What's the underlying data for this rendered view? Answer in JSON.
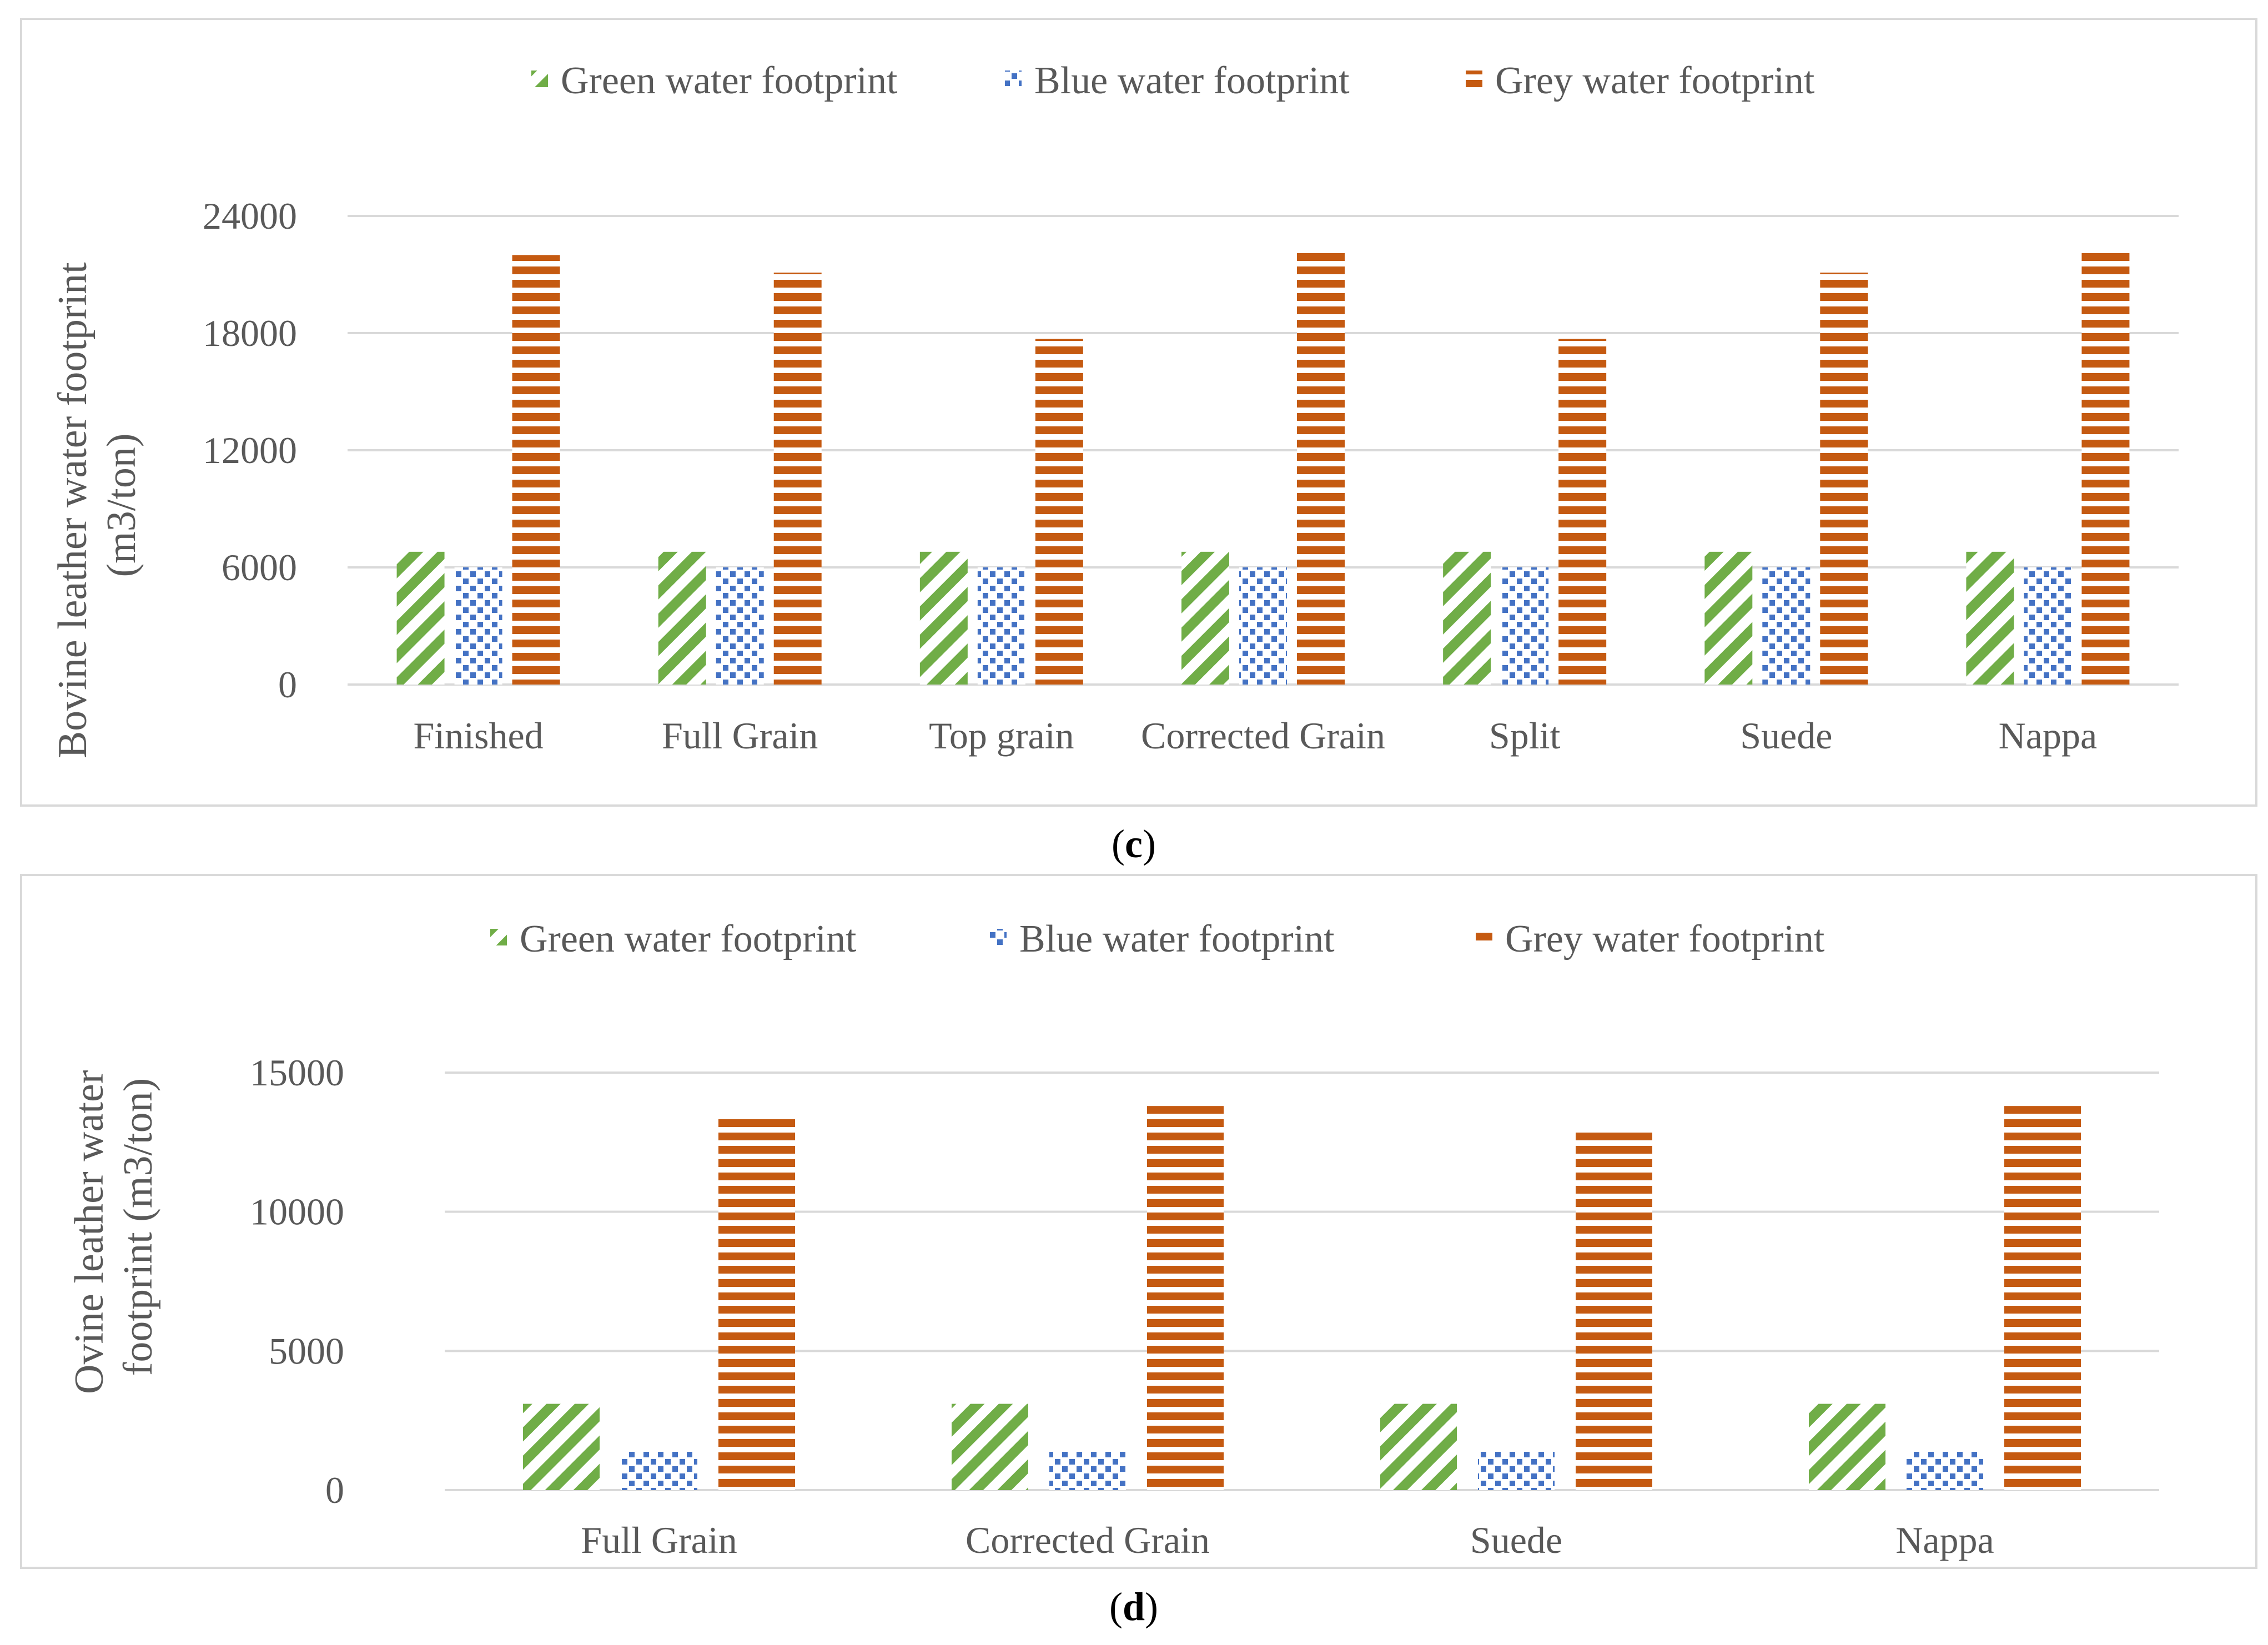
{
  "colors": {
    "green": "#70ad47",
    "blue": "#4472c4",
    "grey": "#c55a11"
  },
  "chart_data": [
    {
      "type": "bar",
      "panel_label": {
        "open": "(",
        "letter": "c",
        "close": ")"
      },
      "categories": [
        "Finished",
        "Full Grain",
        "Top grain",
        "Corrected Grain",
        "Split",
        "Suede",
        "Nappa"
      ],
      "series": [
        {
          "name": "Green water footprint",
          "pattern": "diagonal",
          "values": [
            6800,
            6800,
            6800,
            6800,
            6800,
            6800,
            6800
          ]
        },
        {
          "name": "Blue water footprint",
          "pattern": "dots",
          "values": [
            6000,
            6000,
            6000,
            6000,
            6000,
            6000,
            6000
          ]
        },
        {
          "name": "Grey water footprint",
          "pattern": "horizontal",
          "values": [
            22000,
            21100,
            17700,
            22100,
            17700,
            21100,
            22100
          ]
        }
      ],
      "ylabel_lines": [
        "Bovine leather water footprint",
        "(m3/ton)"
      ],
      "ylim": [
        0,
        24000
      ],
      "yticks": [
        0,
        6000,
        12000,
        18000,
        24000
      ],
      "grid": true,
      "legend": "top"
    },
    {
      "type": "bar",
      "panel_label": {
        "open": "(",
        "letter": "d",
        "close": ")"
      },
      "categories": [
        "Full Grain",
        "Corrected Grain",
        "Suede",
        "Nappa"
      ],
      "series": [
        {
          "name": "Green water footprint",
          "pattern": "diagonal",
          "values": [
            3100,
            3100,
            3100,
            3100
          ]
        },
        {
          "name": "Blue water footprint",
          "pattern": "dots",
          "values": [
            1400,
            1400,
            1400,
            1400
          ]
        },
        {
          "name": "Grey water footprint",
          "pattern": "horizontal",
          "values": [
            13500,
            13800,
            12900,
            13800
          ]
        }
      ],
      "ylabel_lines": [
        "Ovine leather water",
        "footprint (m3/ton)"
      ],
      "ylim": [
        0,
        15000
      ],
      "yticks": [
        0,
        5000,
        10000,
        15000
      ],
      "grid": true,
      "legend": "top"
    }
  ]
}
